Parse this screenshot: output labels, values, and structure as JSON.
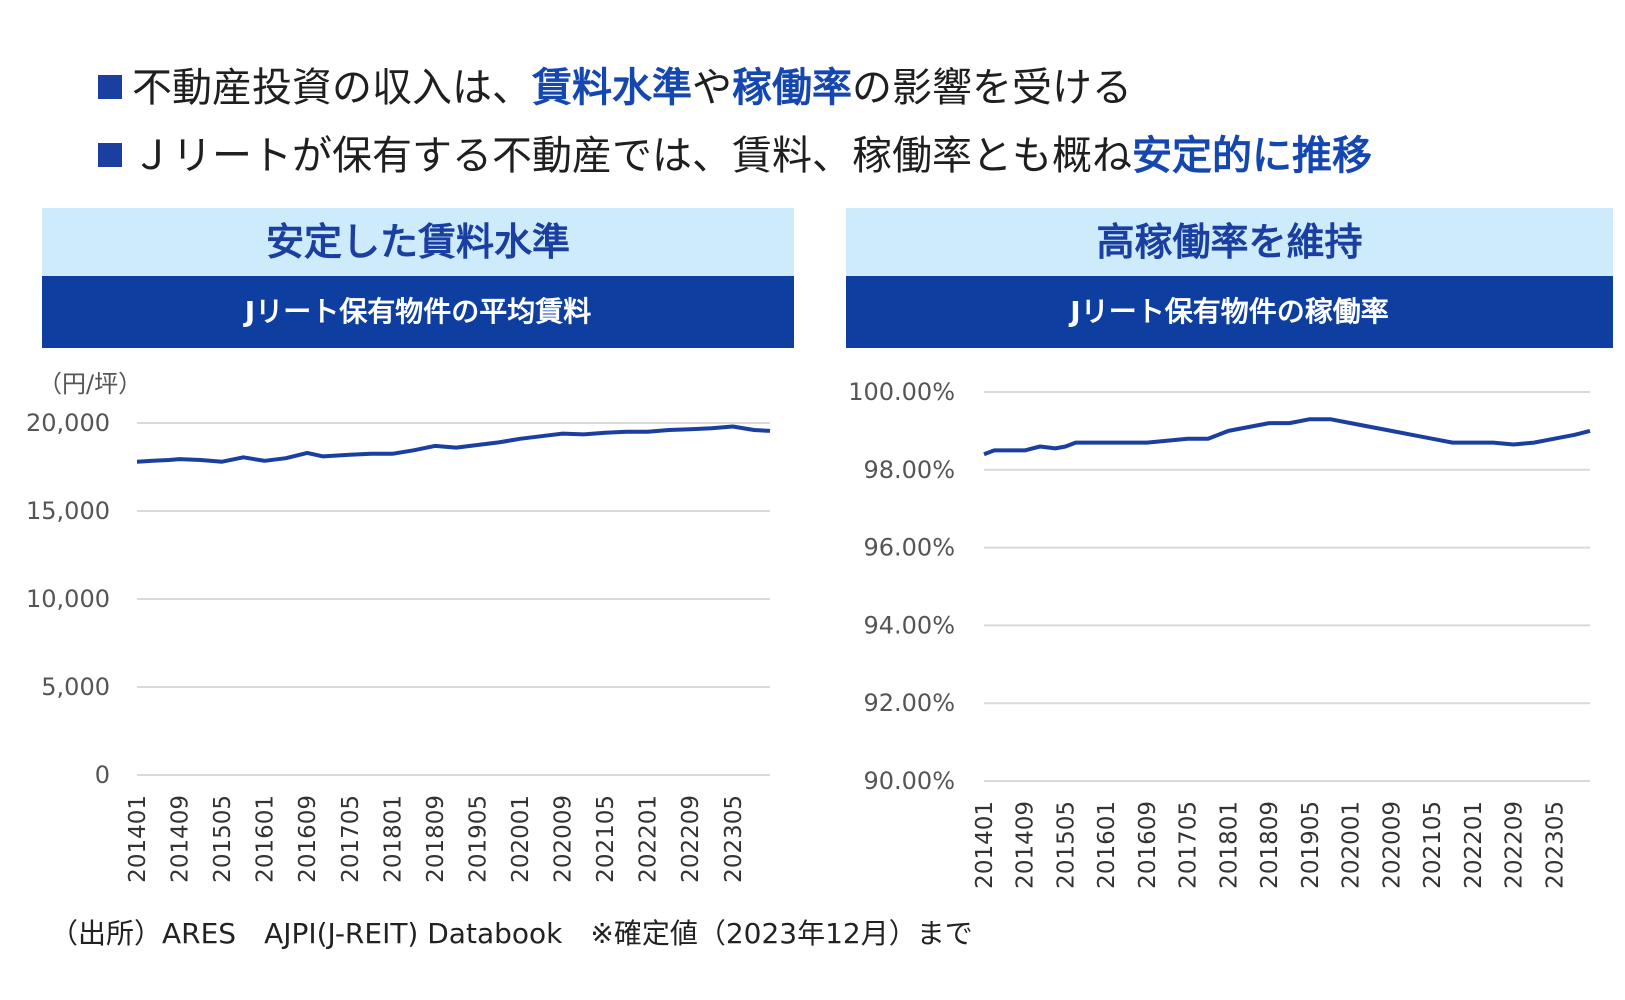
{
  "header": {
    "line1": {
      "p1": "不動産投資の収入は、",
      "h1": "賃料水準",
      "p2": "や",
      "h2": "稼働率",
      "p3": "の影響を受ける"
    },
    "line2": {
      "p1": "Ｊリートが保有する不動産では、賃料、稼働率とも概ね",
      "h1": "安定的に推移"
    }
  },
  "left_panel": {
    "heading": "安定した賃料水準",
    "subheading": "Jリート保有物件の平均賃料"
  },
  "right_panel": {
    "heading": "高稼働率を維持",
    "subheading": "Jリート保有物件の稼働率"
  },
  "source_note": "（出所）ARES　AJPI(J-REIT) Databook　※確定値（2023年12月）まで",
  "colors": {
    "line": "#1a3fa0",
    "header_bg": "#cdebfb",
    "subheader_bg": "#0e3fa0",
    "highlight_text": "#1547b0",
    "grid": "#d9d9d9"
  },
  "chart_data": [
    {
      "type": "line",
      "unit_label": "（円/坪）",
      "ylim": [
        0,
        20000
      ],
      "y_ticks": [
        "0",
        "5,000",
        "10,000",
        "15,000",
        "20,000"
      ],
      "y_tick_values": [
        0,
        5000,
        10000,
        15000,
        20000
      ],
      "x_tick_labels": [
        "201401",
        "201409",
        "201505",
        "201601",
        "201609",
        "201705",
        "201801",
        "201809",
        "201905",
        "202001",
        "202009",
        "202105",
        "202201",
        "202209",
        "202305"
      ],
      "grid": true,
      "x_start": "201401",
      "x_end": "202312",
      "series": [
        {
          "x": [
            "201401",
            "201404",
            "201407",
            "201409",
            "201501",
            "201505",
            "201509",
            "201512",
            "201601",
            "201605",
            "201609",
            "201612",
            "201705",
            "201709",
            "201801",
            "201805",
            "201809",
            "201901",
            "201905",
            "201909",
            "202001",
            "202005",
            "202009",
            "202101",
            "202105",
            "202109",
            "202201",
            "202205",
            "202209",
            "202301",
            "202305",
            "202309",
            "202312"
          ],
          "values": [
            17800,
            17850,
            17900,
            17950,
            17900,
            17800,
            18050,
            17900,
            17850,
            18000,
            18300,
            18100,
            18200,
            18250,
            18250,
            18450,
            18700,
            18600,
            18750,
            18900,
            19100,
            19250,
            19400,
            19350,
            19450,
            19500,
            19500,
            19600,
            19650,
            19700,
            19800,
            19600,
            19550
          ]
        }
      ]
    },
    {
      "type": "line",
      "ylim": [
        90,
        100
      ],
      "y_ticks": [
        "90.00%",
        "92.00%",
        "94.00%",
        "96.00%",
        "98.00%",
        "100.00%"
      ],
      "y_tick_values": [
        90,
        92,
        94,
        96,
        98,
        100
      ],
      "x_tick_labels": [
        "201401",
        "201409",
        "201505",
        "201601",
        "201609",
        "201705",
        "201801",
        "201809",
        "201905",
        "202001",
        "202009",
        "202105",
        "202201",
        "202209",
        "202305"
      ],
      "grid": true,
      "x_start": "201401",
      "x_end": "202312",
      "series": [
        {
          "x": [
            "201401",
            "201403",
            "201409",
            "201412",
            "201503",
            "201505",
            "201507",
            "201509",
            "201601",
            "201603",
            "201609",
            "201705",
            "201709",
            "201801",
            "201805",
            "201809",
            "201901",
            "201905",
            "201909",
            "202001",
            "202005",
            "202009",
            "202101",
            "202105",
            "202109",
            "202201",
            "202205",
            "202209",
            "202301",
            "202305",
            "202309",
            "202312"
          ],
          "values": [
            98.4,
            98.5,
            98.5,
            98.6,
            98.55,
            98.6,
            98.7,
            98.7,
            98.7,
            98.7,
            98.7,
            98.8,
            98.8,
            99.0,
            99.1,
            99.2,
            99.2,
            99.3,
            99.3,
            99.2,
            99.1,
            99.0,
            98.9,
            98.8,
            98.7,
            98.7,
            98.7,
            98.65,
            98.7,
            98.8,
            98.9,
            99.0
          ]
        }
      ]
    }
  ]
}
